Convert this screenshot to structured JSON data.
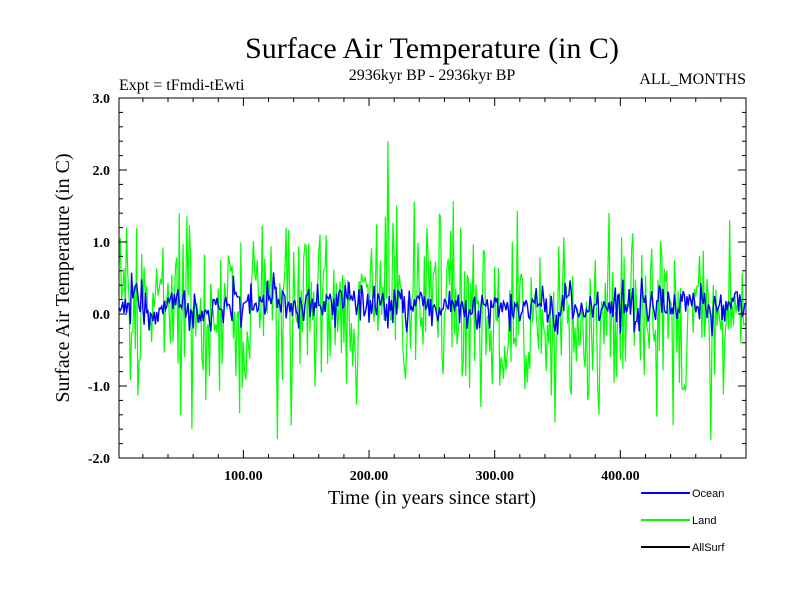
{
  "chart_data": {
    "type": "line",
    "title": "Surface Air Temperature (in C)",
    "subtitle": "2936kyr BP - 2936kyr BP",
    "experiment": "Expt = tFmdi-tEwti",
    "period": "ALL_MONTHS",
    "xlabel": "Time (in years since start)",
    "ylabel": "Surface Air Temperature (in C)",
    "xlim": [
      1,
      500
    ],
    "ylim": [
      -2.0,
      3.0
    ],
    "x_ticks": [
      100,
      200,
      300,
      400
    ],
    "x_tick_labels": [
      "100.00",
      "200.00",
      "300.00",
      "400.00"
    ],
    "y_ticks": [
      -2,
      -1,
      0,
      1,
      2,
      3
    ],
    "y_tick_labels": [
      "-2.0",
      "-1.0",
      "0.0",
      "1.0",
      "2.0",
      "3.0"
    ],
    "legend_position": "bottom-right",
    "series": [
      {
        "name": "Land",
        "color": "#00ff00",
        "n_points": 500,
        "mean": 0.05,
        "std": 0.62,
        "min": -1.75,
        "max": 2.4,
        "max_at_year": 215
      },
      {
        "name": "Ocean",
        "color": "#0000ff",
        "n_points": 500,
        "mean": 0.1,
        "std": 0.15,
        "min": -0.4,
        "max": 0.65
      },
      {
        "name": "AllSurf",
        "color": "#000000",
        "n_points": 0
      }
    ]
  }
}
